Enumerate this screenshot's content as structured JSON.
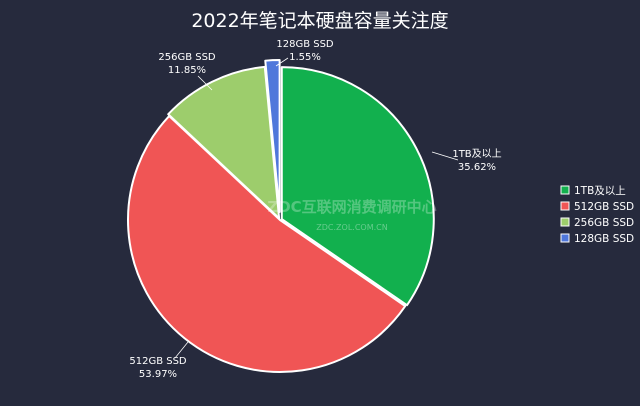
{
  "watermark": {
    "main": "ZDC互联网消费调研中心",
    "sub": "ZDC.ZOL.COM.CN"
  },
  "chart_data": {
    "type": "pie",
    "title": "2022年笔记本硬盘容量关注度",
    "legend_position": "right",
    "slices": [
      {
        "label": "1TB及以上",
        "value": 35.62,
        "value_text": "35.62%",
        "color": "#12b04e"
      },
      {
        "label": "512GB SSD",
        "value": 53.97,
        "value_text": "53.97%",
        "color": "#f05555"
      },
      {
        "label": "256GB SSD",
        "value": 11.85,
        "value_text": "11.85%",
        "color": "#9dcd6c"
      },
      {
        "label": "128GB SSD",
        "value": 1.55,
        "value_text": "1.55%",
        "color": "#4f77db"
      }
    ]
  }
}
